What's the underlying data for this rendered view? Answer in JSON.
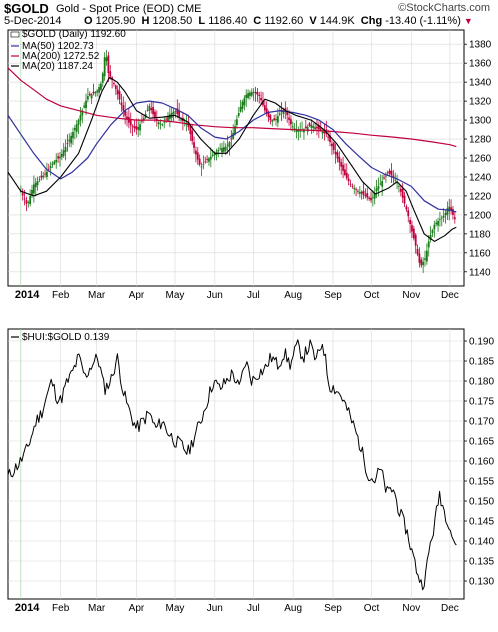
{
  "header": {
    "symbol": "$GOLD",
    "name": "Gold - Spot Price (EOD)",
    "exchange": "CME",
    "date": "5-Dec-2014",
    "open_label": "O",
    "open": "1205.90",
    "high_label": "H",
    "high": "1208.50",
    "low_label": "L",
    "low": "1186.40",
    "close_label": "C",
    "close": "1192.60",
    "volume_label": "V",
    "volume": "144.9K",
    "change_label": "Chg",
    "change": "-13.40 (-1.11%)",
    "logo": "©StockCharts.com"
  },
  "colors": {
    "background": "#ffffff",
    "grid": "#d8d8d8",
    "up": "#1a7a1a",
    "down": "#c0003c",
    "ma50": "#3030a0",
    "ma200": "#c0003c",
    "ma20": "#000000",
    "ratio_line": "#000000"
  },
  "chart_data": [
    {
      "type": "candlestick",
      "legend": {
        "price": "$GOLD (Daily) 1192.60",
        "ma50": "MA(50) 1202.73",
        "ma200": "MA(200) 1272.52",
        "ma20": "MA(20) 1187.24"
      },
      "ylim": [
        1125,
        1395
      ],
      "y_ticks": [
        "1140",
        "1160",
        "1180",
        "1200",
        "1220",
        "1240",
        "1260",
        "1280",
        "1300",
        "1320",
        "1340",
        "1360",
        "1380"
      ],
      "y_tick_values": [
        1140,
        1160,
        1180,
        1200,
        1220,
        1240,
        1260,
        1280,
        1300,
        1320,
        1340,
        1360,
        1380
      ],
      "x_labels": [
        "2014",
        "Feb",
        "Mar",
        "Apr",
        "May",
        "Jun",
        "Jul",
        "Aug",
        "Sep",
        "Oct",
        "Nov",
        "Dec"
      ],
      "x_label_days": [
        0,
        31,
        59,
        90,
        120,
        151,
        181,
        212,
        243,
        273,
        304,
        334
      ],
      "x_domain": [
        -10,
        345
      ],
      "close_path": [
        [
          0,
          1225
        ],
        [
          5,
          1210
        ],
        [
          10,
          1232
        ],
        [
          15,
          1238
        ],
        [
          20,
          1245
        ],
        [
          25,
          1255
        ],
        [
          31,
          1262
        ],
        [
          38,
          1280
        ],
        [
          45,
          1300
        ],
        [
          52,
          1325
        ],
        [
          59,
          1330
        ],
        [
          63,
          1340
        ],
        [
          66,
          1375
        ],
        [
          68,
          1350
        ],
        [
          72,
          1340
        ],
        [
          76,
          1325
        ],
        [
          81,
          1305
        ],
        [
          85,
          1295
        ],
        [
          90,
          1290
        ],
        [
          95,
          1300
        ],
        [
          100,
          1315
        ],
        [
          105,
          1300
        ],
        [
          110,
          1295
        ],
        [
          115,
          1305
        ],
        [
          120,
          1310
        ],
        [
          125,
          1300
        ],
        [
          130,
          1295
        ],
        [
          136,
          1265
        ],
        [
          140,
          1250
        ],
        [
          145,
          1258
        ],
        [
          151,
          1265
        ],
        [
          155,
          1270
        ],
        [
          160,
          1272
        ],
        [
          164,
          1280
        ],
        [
          168,
          1300
        ],
        [
          172,
          1318
        ],
        [
          176,
          1328
        ],
        [
          181,
          1330
        ],
        [
          186,
          1325
        ],
        [
          190,
          1310
        ],
        [
          194,
          1300
        ],
        [
          198,
          1300
        ],
        [
          202,
          1308
        ],
        [
          206,
          1310
        ],
        [
          210,
          1296
        ],
        [
          214,
          1290
        ],
        [
          220,
          1290
        ],
        [
          226,
          1295
        ],
        [
          232,
          1290
        ],
        [
          238,
          1285
        ],
        [
          243,
          1270
        ],
        [
          248,
          1255
        ],
        [
          253,
          1240
        ],
        [
          258,
          1230
        ],
        [
          263,
          1225
        ],
        [
          268,
          1220
        ],
        [
          273,
          1215
        ],
        [
          277,
          1228
        ],
        [
          281,
          1235
        ],
        [
          286,
          1245
        ],
        [
          290,
          1240
        ],
        [
          294,
          1232
        ],
        [
          298,
          1215
        ],
        [
          301,
          1202
        ],
        [
          304,
          1185
        ],
        [
          307,
          1170
        ],
        [
          311,
          1145
        ],
        [
          315,
          1155
        ],
        [
          318,
          1175
        ],
        [
          322,
          1190
        ],
        [
          326,
          1195
        ],
        [
          330,
          1200
        ],
        [
          333,
          1210
        ],
        [
          335,
          1205
        ],
        [
          337,
          1198
        ],
        [
          339,
          1192
        ]
      ],
      "ma50_path": [
        [
          -10,
          1305
        ],
        [
          0,
          1285
        ],
        [
          10,
          1265
        ],
        [
          20,
          1248
        ],
        [
          31,
          1238
        ],
        [
          40,
          1245
        ],
        [
          52,
          1260
        ],
        [
          59,
          1275
        ],
        [
          70,
          1295
        ],
        [
          81,
          1310
        ],
        [
          90,
          1318
        ],
        [
          100,
          1320
        ],
        [
          110,
          1318
        ],
        [
          120,
          1312
        ],
        [
          130,
          1305
        ],
        [
          140,
          1292
        ],
        [
          151,
          1282
        ],
        [
          160,
          1280
        ],
        [
          170,
          1288
        ],
        [
          181,
          1300
        ],
        [
          192,
          1308
        ],
        [
          202,
          1310
        ],
        [
          212,
          1308
        ],
        [
          222,
          1305
        ],
        [
          232,
          1300
        ],
        [
          243,
          1290
        ],
        [
          253,
          1275
        ],
        [
          263,
          1262
        ],
        [
          273,
          1250
        ],
        [
          283,
          1243
        ],
        [
          293,
          1238
        ],
        [
          304,
          1230
        ],
        [
          314,
          1215
        ],
        [
          325,
          1206
        ],
        [
          334,
          1205
        ],
        [
          339,
          1203
        ]
      ],
      "ma200_path": [
        [
          -10,
          1355
        ],
        [
          0,
          1342
        ],
        [
          10,
          1332
        ],
        [
          20,
          1322
        ],
        [
          31,
          1315
        ],
        [
          45,
          1310
        ],
        [
          59,
          1305
        ],
        [
          75,
          1302
        ],
        [
          90,
          1300
        ],
        [
          105,
          1300
        ],
        [
          120,
          1298
        ],
        [
          135,
          1295
        ],
        [
          151,
          1293
        ],
        [
          165,
          1292
        ],
        [
          181,
          1292
        ],
        [
          195,
          1291
        ],
        [
          212,
          1290
        ],
        [
          230,
          1289
        ],
        [
          243,
          1288
        ],
        [
          260,
          1286
        ],
        [
          273,
          1284
        ],
        [
          290,
          1282
        ],
        [
          304,
          1280
        ],
        [
          320,
          1277
        ],
        [
          334,
          1274
        ],
        [
          339,
          1272
        ]
      ],
      "ma20_path": [
        [
          -10,
          1245
        ],
        [
          0,
          1225
        ],
        [
          10,
          1220
        ],
        [
          20,
          1225
        ],
        [
          31,
          1240
        ],
        [
          45,
          1265
        ],
        [
          55,
          1300
        ],
        [
          63,
          1330
        ],
        [
          69,
          1345
        ],
        [
          75,
          1340
        ],
        [
          81,
          1330
        ],
        [
          90,
          1310
        ],
        [
          100,
          1302
        ],
        [
          110,
          1303
        ],
        [
          120,
          1305
        ],
        [
          130,
          1298
        ],
        [
          140,
          1280
        ],
        [
          151,
          1265
        ],
        [
          160,
          1265
        ],
        [
          170,
          1280
        ],
        [
          181,
          1305
        ],
        [
          190,
          1322
        ],
        [
          198,
          1318
        ],
        [
          206,
          1310
        ],
        [
          214,
          1305
        ],
        [
          226,
          1300
        ],
        [
          236,
          1290
        ],
        [
          246,
          1275
        ],
        [
          256,
          1255
        ],
        [
          266,
          1235
        ],
        [
          276,
          1222
        ],
        [
          286,
          1228
        ],
        [
          293,
          1235
        ],
        [
          300,
          1225
        ],
        [
          306,
          1205
        ],
        [
          314,
          1180
        ],
        [
          322,
          1172
        ],
        [
          330,
          1178
        ],
        [
          336,
          1185
        ],
        [
          339,
          1187
        ]
      ]
    },
    {
      "type": "line",
      "legend": {
        "series": "$HUI:$GOLD 0.139"
      },
      "ylim": [
        0.1255,
        0.193
      ],
      "y_ticks": [
        "0.130",
        "0.135",
        "0.140",
        "0.145",
        "0.150",
        "0.155",
        "0.160",
        "0.165",
        "0.170",
        "0.175",
        "0.180",
        "0.185",
        "0.190"
      ],
      "y_tick_values": [
        0.13,
        0.135,
        0.14,
        0.145,
        0.15,
        0.155,
        0.16,
        0.165,
        0.17,
        0.175,
        0.18,
        0.185,
        0.19
      ],
      "x_labels": [
        "2014",
        "Feb",
        "Mar",
        "Apr",
        "May",
        "Jun",
        "Jul",
        "Aug",
        "Sep",
        "Oct",
        "Nov",
        "Dec"
      ],
      "x_label_days": [
        0,
        31,
        59,
        90,
        120,
        151,
        181,
        212,
        243,
        273,
        304,
        334
      ],
      "x_domain": [
        -10,
        345
      ],
      "path": [
        [
          -10,
          0.156
        ],
        [
          -5,
          0.158
        ],
        [
          0,
          0.16
        ],
        [
          5,
          0.163
        ],
        [
          8,
          0.166
        ],
        [
          12,
          0.17
        ],
        [
          16,
          0.172
        ],
        [
          20,
          0.176
        ],
        [
          24,
          0.18
        ],
        [
          28,
          0.176
        ],
        [
          31,
          0.175
        ],
        [
          35,
          0.179
        ],
        [
          40,
          0.182
        ],
        [
          45,
          0.186
        ],
        [
          50,
          0.181
        ],
        [
          55,
          0.184
        ],
        [
          60,
          0.186
        ],
        [
          65,
          0.178
        ],
        [
          70,
          0.18
        ],
        [
          75,
          0.186
        ],
        [
          80,
          0.177
        ],
        [
          85,
          0.172
        ],
        [
          90,
          0.168
        ],
        [
          95,
          0.17
        ],
        [
          100,
          0.172
        ],
        [
          105,
          0.168
        ],
        [
          110,
          0.17
        ],
        [
          115,
          0.167
        ],
        [
          120,
          0.165
        ],
        [
          125,
          0.164
        ],
        [
          130,
          0.162
        ],
        [
          135,
          0.166
        ],
        [
          140,
          0.17
        ],
        [
          145,
          0.175
        ],
        [
          150,
          0.18
        ],
        [
          155,
          0.178
        ],
        [
          160,
          0.18
        ],
        [
          165,
          0.182
        ],
        [
          170,
          0.178
        ],
        [
          175,
          0.185
        ],
        [
          180,
          0.18
        ],
        [
          185,
          0.182
        ],
        [
          190,
          0.183
        ],
        [
          195,
          0.186
        ],
        [
          200,
          0.184
        ],
        [
          205,
          0.187
        ],
        [
          210,
          0.184
        ],
        [
          215,
          0.189
        ],
        [
          220,
          0.186
        ],
        [
          225,
          0.189
        ],
        [
          230,
          0.185
        ],
        [
          235,
          0.19
        ],
        [
          240,
          0.179
        ],
        [
          245,
          0.178
        ],
        [
          250,
          0.176
        ],
        [
          255,
          0.172
        ],
        [
          260,
          0.168
        ],
        [
          265,
          0.163
        ],
        [
          270,
          0.157
        ],
        [
          275,
          0.155
        ],
        [
          280,
          0.158
        ],
        [
          285,
          0.152
        ],
        [
          290,
          0.153
        ],
        [
          295,
          0.147
        ],
        [
          300,
          0.143
        ],
        [
          304,
          0.138
        ],
        [
          308,
          0.133
        ],
        [
          312,
          0.129
        ],
        [
          315,
          0.131
        ],
        [
          318,
          0.138
        ],
        [
          322,
          0.144
        ],
        [
          326,
          0.152
        ],
        [
          330,
          0.147
        ],
        [
          333,
          0.145
        ],
        [
          336,
          0.141
        ],
        [
          339,
          0.139
        ]
      ]
    }
  ]
}
